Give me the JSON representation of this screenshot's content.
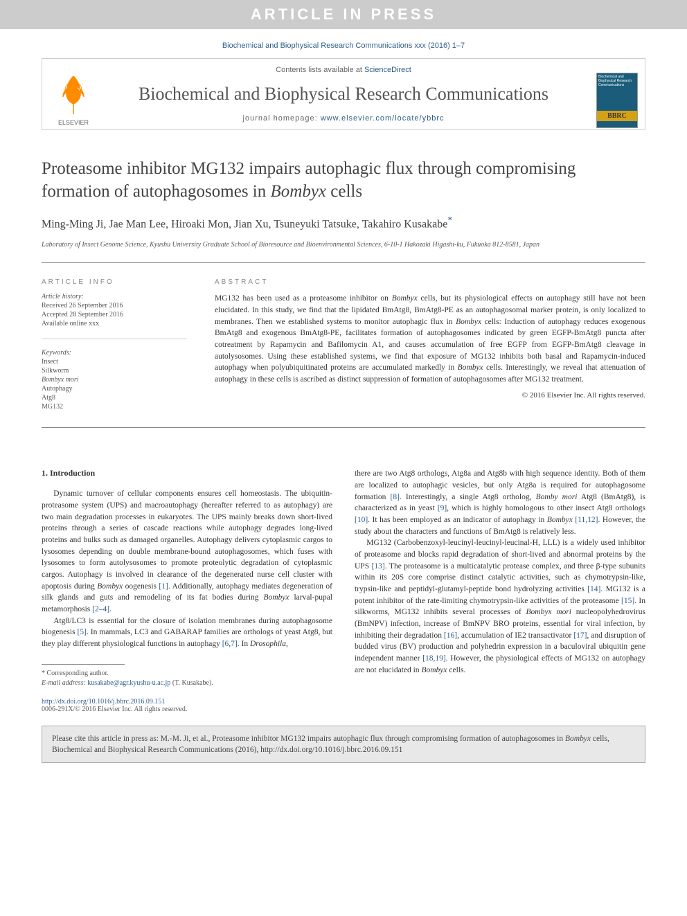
{
  "banner": "ARTICLE IN PRESS",
  "journal_ref": "Biochemical and Biophysical Research Communications xxx (2016) 1–7",
  "header": {
    "contents_prefix": "Contents lists available at ",
    "contents_link": "ScienceDirect",
    "journal_name": "Biochemical and Biophysical Research Communications",
    "homepage_prefix": "journal homepage: ",
    "homepage_url": "www.elsevier.com/locate/ybbrc",
    "publisher": "ELSEVIER",
    "cover_text": "Biochemical and Biophysical Research Communications",
    "cover_label": "BBRC"
  },
  "title_html": "Proteasome inhibitor MG132 impairs autophagic flux through compromising formation of autophagosomes in <em>Bombyx</em> cells",
  "authors_html": "Ming-Ming Ji, Jae Man Lee, Hiroaki Mon, Jian Xu, Tsuneyuki Tatsuke, Takahiro Kusakabe<span class='corr'>*</span>",
  "affiliation": "Laboratory of Insect Genome Science, Kyushu University Graduate School of Bioresource and Bioenvironmental Sciences, 6-10-1 Hakozaki Higashi-ku, Fukuoka 812-8581, Japan",
  "article_info": {
    "heading": "ARTICLE INFO",
    "history_label": "Article history:",
    "received": "Received 26 September 2016",
    "accepted": "Accepted 28 September 2016",
    "online": "Available online xxx",
    "keywords_label": "Keywords:",
    "keywords": [
      "Insect",
      "Silkworm",
      "Bombyx mori",
      "Autophagy",
      "Atg8",
      "MG132"
    ]
  },
  "abstract": {
    "heading": "ABSTRACT",
    "text_html": "MG132 has been used as a proteasome inhibitor on <em>Bombyx</em> cells, but its physiological effects on autophagy still have not been elucidated. In this study, we find that the lipidated BmAtg8, BmAtg8-PE as an autophagosomal marker protein, is only localized to membranes. Then we established systems to monitor autophagic flux in <em>Bombyx</em> cells: Induction of autophagy reduces exogenous BmAtg8 and exogenous BmAtg8-PE, facilitates formation of autophagosomes indicated by green EGFP-BmAtg8 puncta after cotreatment by Rapamycin and Bafilomycin A1, and causes accumulation of free EGFP from EGFP-BmAtg8 cleavage in autolysosomes. Using these established systems, we find that exposure of MG132 inhibits both basal and Rapamycin-induced autophagy when polyubiquitinated proteins are accumulated markedly in <em>Bombyx</em> cells. Interestingly, we reveal that attenuation of autophagy in these cells is ascribed as distinct suppression of formation of autophagosomes after MG132 treatment.",
    "copyright": "© 2016 Elsevier Inc. All rights reserved."
  },
  "body": {
    "intro_heading": "1. Introduction",
    "col1_p1_html": "Dynamic turnover of cellular components ensures cell homeostasis. The ubiquitin-proteasome system (UPS) and macroautophagy (hereafter referred to as autophagy) are two main degradation processes in eukaryotes. The UPS mainly breaks down short-lived proteins through a series of cascade reactions while autophagy degrades long-lived proteins and bulks such as damaged organelles. Autophagy delivers cytoplasmic cargos to lysosomes depending on double membrane-bound autophagosomes, which fuses with lysosomes to form autolysosomes to promote proteolytic degradation of cytoplasmic cargos. Autophagy is involved in clearance of the degenerated nurse cell cluster with apoptosis during <em>Bombyx</em> oogenesis <span class='ref'>[1]</span>. Additionally, autophagy mediates degeneration of silk glands and guts and remodeling of its fat bodies during <em>Bombyx</em> larval-pupal metamorphosis <span class='ref'>[2–4]</span>.",
    "col1_p2_html": "Atg8/LC3 is essential for the closure of isolation membranes during autophagosome biogenesis <span class='ref'>[5]</span>. In mammals, LC3 and GABARAP families are orthologs of yeast Atg8, but they play different physiological functions in autophagy <span class='ref'>[6,7]</span>. In <em>Drosophila</em>,",
    "col2_p1_html": "there are two Atg8 orthologs, Atg8a and Atg8b with high sequence identity. Both of them are localized to autophagic vesicles, but only Atg8a is required for autophagosome formation <span class='ref'>[8]</span>. Interestingly, a single Atg8 ortholog, <em>Bomby mori</em> Atg8 (BmAtg8), is characterized as in yeast <span class='ref'>[9]</span>, which is highly homologous to other insect Atg8 orthologs <span class='ref'>[10]</span>. It has been employed as an indicator of autophagy in <em>Bombyx</em> <span class='ref'>[11,12]</span>. However, the study about the characters and functions of BmAtg8 is relatively less.",
    "col2_p2_html": "MG132 (Carbobenzoxyl-leucinyl-leucinyl-leucinal-H, LLL) is a widely used inhibitor of proteasome and blocks rapid degradation of short-lived and abnormal proteins by the UPS <span class='ref'>[13]</span>. The proteasome is a multicatalytic protease complex, and three β-type subunits within its 20S core comprise distinct catalytic activities, such as chymotrypsin-like, trypsin-like and peptidyl-glutamyl-peptide bond hydrolyzing activities <span class='ref'>[14]</span>. MG132 is a potent inhibitor of the rate-limiting chymotrypsin-like activities of the proteasome <span class='ref'>[15]</span>. In silkworms, MG132 inhibits several processes of <em>Bombyx mori</em> nucleopolyhedrovirus (BmNPV) infection, increase of BmNPV BRO proteins, essential for viral infection, by inhibiting their degradation <span class='ref'>[16]</span>, accumulation of IE2 transactivator <span class='ref'>[17]</span>, and disruption of budded virus (BV) production and polyhedrin expression in a baculoviral ubiquitin gene independent manner <span class='ref'>[18,19]</span>. However, the physiological effects of MG132 on autophagy are not elucidated in <em>Bombyx</em> cells."
  },
  "footnote": {
    "corr_label": "* Corresponding author.",
    "email_label": "E-mail address: ",
    "email": "kusakabe@agr.kyushu-u.ac.jp",
    "email_name": " (T. Kusakabe)."
  },
  "doi": {
    "url": "http://dx.doi.org/10.1016/j.bbrc.2016.09.151",
    "issn_line": "0006-291X/© 2016 Elsevier Inc. All rights reserved."
  },
  "cite_box_html": "Please cite this article in press as: M.-M. Ji, et al., Proteasome inhibitor MG132 impairs autophagic flux through compromising formation of autophagosomes in <em>Bombyx</em> cells, Biochemical and Biophysical Research Communications (2016), http://dx.doi.org/10.1016/j.bbrc.2016.09.151",
  "colors": {
    "link": "#2e5c8a",
    "banner_bg": "#cccccc",
    "cover_bg": "#1a5c7a",
    "cover_label_bg": "#d4a017",
    "elsevier_orange": "#ff8c00"
  }
}
